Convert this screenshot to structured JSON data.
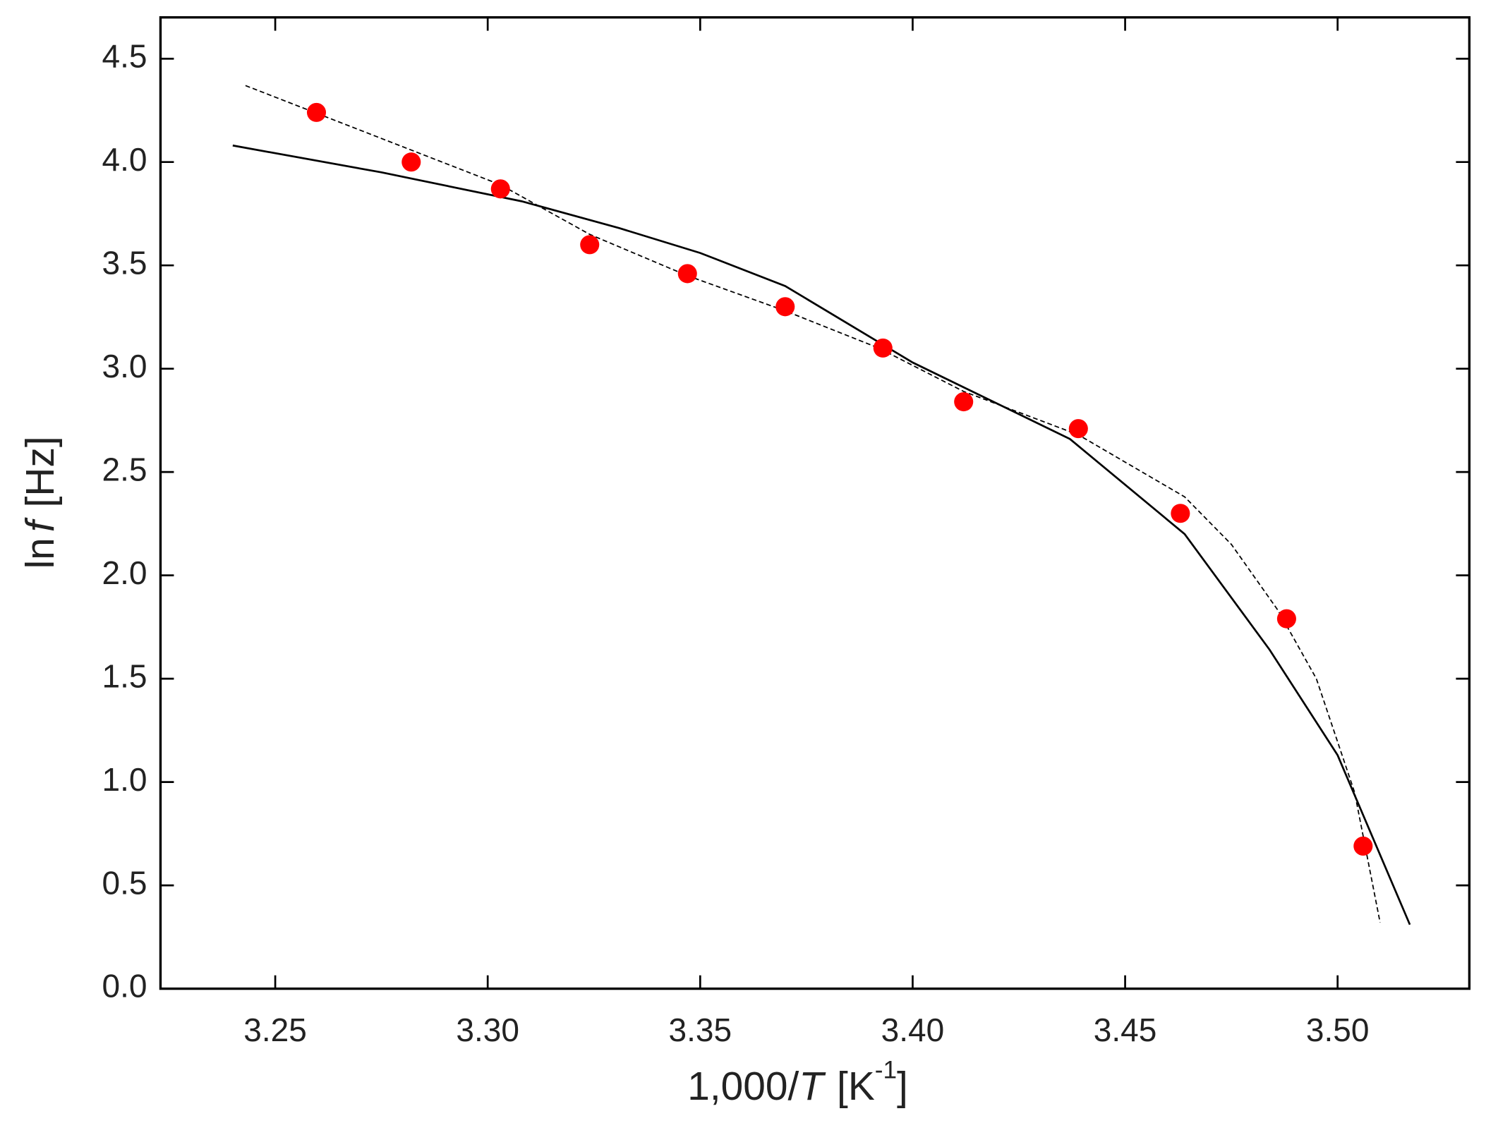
{
  "chart_data": {
    "type": "scatter",
    "x_label_parts": [
      "1,000/",
      "T",
      "[K",
      "-1",
      "]"
    ],
    "y_label_parts": [
      "ln",
      "f",
      "[Hz]"
    ],
    "x": [
      3.2597,
      3.282,
      3.303,
      3.324,
      3.347,
      3.37,
      3.393,
      3.412,
      3.439,
      3.463,
      3.488,
      3.506
    ],
    "values": [
      4.24,
      4.0,
      3.87,
      3.6,
      3.46,
      3.3,
      3.1,
      2.84,
      2.71,
      2.3,
      1.79,
      0.69
    ],
    "color": "#ff0000",
    "fits": [
      {
        "style": "solid",
        "color": "#000000",
        "x": [
          3.24,
          3.275,
          3.308,
          3.331,
          3.35,
          3.37,
          3.4,
          3.437,
          3.464,
          3.484,
          3.5,
          3.517
        ],
        "values": [
          4.08,
          3.95,
          3.81,
          3.68,
          3.56,
          3.4,
          3.03,
          2.66,
          2.2,
          1.64,
          1.13,
          0.31
        ]
      },
      {
        "style": "dashed",
        "color": "#000000",
        "x": [
          3.243,
          3.303,
          3.324,
          3.347,
          3.37,
          3.392,
          3.412,
          3.439,
          3.464,
          3.475,
          3.486,
          3.495,
          3.504,
          3.51
        ],
        "values": [
          4.37,
          3.89,
          3.65,
          3.45,
          3.28,
          3.1,
          2.89,
          2.68,
          2.38,
          2.15,
          1.83,
          1.5,
          0.95,
          0.32
        ]
      }
    ],
    "xlim": [
      3.223,
      3.531
    ],
    "ylim": [
      0,
      4.7
    ],
    "xticks": [
      {
        "value": 3.25,
        "label": "3.25"
      },
      {
        "value": 3.3,
        "label": "3.30"
      },
      {
        "value": 3.35,
        "label": "3.35"
      },
      {
        "value": 3.4,
        "label": "3.40"
      },
      {
        "value": 3.45,
        "label": "3.45"
      },
      {
        "value": 3.5,
        "label": "3.50"
      }
    ],
    "yticks": [
      {
        "value": 0,
        "label": "0.0"
      },
      {
        "value": 0.5,
        "label": "0.5"
      },
      {
        "value": 1,
        "label": "1.0"
      },
      {
        "value": 1.5,
        "label": "1.5"
      },
      {
        "value": 2,
        "label": "2.0"
      },
      {
        "value": 2.5,
        "label": "2.5"
      },
      {
        "value": 3,
        "label": "3.0"
      },
      {
        "value": 3.5,
        "label": "3.5"
      },
      {
        "value": 4,
        "label": "4.0"
      },
      {
        "value": 4.5,
        "label": "4.5"
      }
    ],
    "grid": false
  }
}
